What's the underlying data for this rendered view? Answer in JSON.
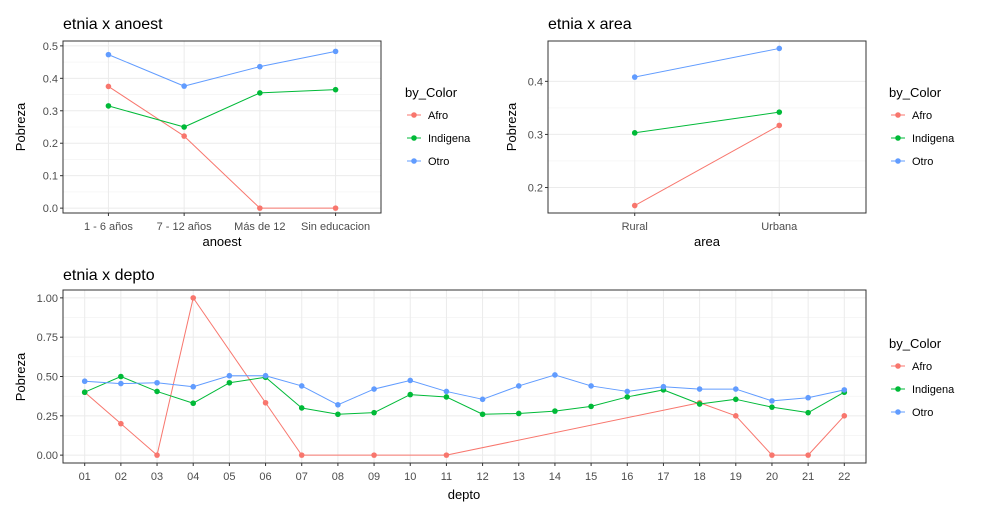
{
  "chart_data": [
    {
      "type": "line",
      "title": "etnia x anoest",
      "xlabel": "anoest",
      "ylabel": "Pobreza",
      "categories": [
        "1 - 6 años",
        "7 - 12 años",
        "Más de 12",
        "Sin educacion"
      ],
      "ylim": [
        -0.015,
        0.515
      ],
      "yticks": [
        "0.0",
        "0.1",
        "0.2",
        "0.3",
        "0.4",
        "0.5"
      ],
      "ytick_values": [
        0,
        0.1,
        0.2,
        0.3,
        0.4,
        0.5
      ],
      "grid": true,
      "legend": {
        "title": "by_Color",
        "placement": "right"
      },
      "series": [
        {
          "name": "Afro",
          "color": "#F8766D",
          "values": [
            0.375,
            0.222,
            0.0,
            0.0
          ]
        },
        {
          "name": "Indigena",
          "color": "#00BA38",
          "values": [
            0.315,
            0.25,
            0.355,
            0.365
          ]
        },
        {
          "name": "Otro",
          "color": "#619CFF",
          "values": [
            0.473,
            0.376,
            0.436,
            0.483
          ]
        }
      ]
    },
    {
      "type": "line",
      "title": "etnia x area",
      "xlabel": "area",
      "ylabel": "Pobreza",
      "categories": [
        "Rural",
        "Urbana"
      ],
      "ylim": [
        0.152,
        0.476
      ],
      "yticks": [
        "0.2",
        "0.3",
        "0.4"
      ],
      "ytick_values": [
        0.2,
        0.3,
        0.4
      ],
      "grid": true,
      "legend": {
        "title": "by_Color",
        "placement": "right"
      },
      "series": [
        {
          "name": "Afro",
          "color": "#F8766D",
          "values": [
            0.166,
            0.317
          ]
        },
        {
          "name": "Indigena",
          "color": "#00BA38",
          "values": [
            0.303,
            0.342
          ]
        },
        {
          "name": "Otro",
          "color": "#619CFF",
          "values": [
            0.408,
            0.462
          ]
        }
      ]
    },
    {
      "type": "line",
      "title": "etnia x depto",
      "xlabel": "depto",
      "ylabel": "Pobreza",
      "categories": [
        "01",
        "02",
        "03",
        "04",
        "05",
        "06",
        "07",
        "08",
        "09",
        "10",
        "11",
        "12",
        "13",
        "14",
        "15",
        "16",
        "17",
        "18",
        "19",
        "20",
        "21",
        "22"
      ],
      "ylim": [
        -0.05,
        1.05
      ],
      "yticks": [
        "0.00",
        "0.25",
        "0.50",
        "0.75",
        "1.00"
      ],
      "ytick_values": [
        0,
        0.25,
        0.5,
        0.75,
        1.0
      ],
      "grid": true,
      "legend": {
        "title": "by_Color",
        "placement": "right"
      },
      "series": [
        {
          "name": "Afro",
          "color": "#F8766D",
          "values": [
            0.4,
            0.2,
            0.0,
            1.0,
            null,
            0.333,
            0.0,
            null,
            0.0,
            null,
            0.0,
            null,
            null,
            null,
            null,
            null,
            null,
            0.333,
            0.25,
            0.0,
            0.0,
            0.25
          ]
        },
        {
          "name": "Indigena",
          "color": "#00BA38",
          "values": [
            0.4,
            0.5,
            0.405,
            0.33,
            0.46,
            0.495,
            0.3,
            0.26,
            0.27,
            0.385,
            0.37,
            0.26,
            0.265,
            0.28,
            0.31,
            0.37,
            0.415,
            0.325,
            0.355,
            0.305,
            0.27,
            0.4
          ]
        },
        {
          "name": "Otro",
          "color": "#619CFF",
          "values": [
            0.47,
            0.455,
            0.46,
            0.435,
            0.505,
            0.505,
            0.44,
            0.32,
            0.42,
            0.475,
            0.405,
            0.355,
            0.44,
            0.51,
            0.44,
            0.405,
            0.435,
            0.42,
            0.42,
            0.345,
            0.365,
            0.415
          ]
        }
      ]
    }
  ]
}
